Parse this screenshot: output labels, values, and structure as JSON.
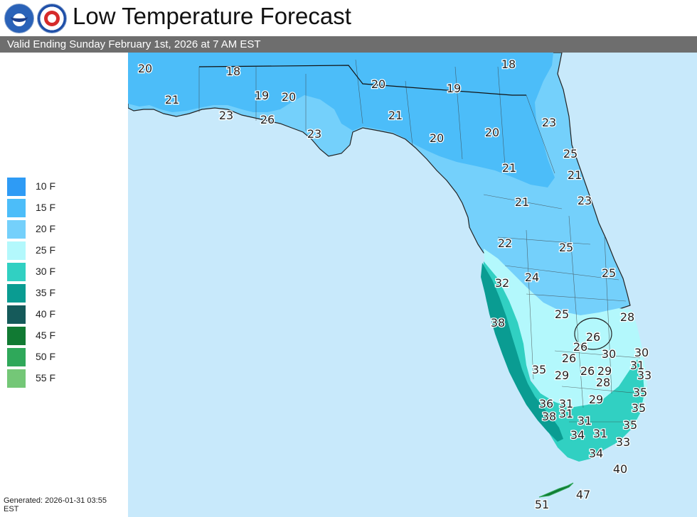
{
  "header": {
    "title": "Low Temperature Forecast",
    "valid_text": "Valid Ending Sunday February 1st, 2026 at 7 AM EST"
  },
  "logos": [
    "noaa-logo",
    "nws-logo"
  ],
  "legend": {
    "items": [
      {
        "label": "10 F",
        "color": "#2e9bf5"
      },
      {
        "label": "15 F",
        "color": "#4cbdf9"
      },
      {
        "label": "20 F",
        "color": "#74d0fb"
      },
      {
        "label": "25 F",
        "color": "#b3f8fc"
      },
      {
        "label": "30 F",
        "color": "#31d0c2"
      },
      {
        "label": "35 F",
        "color": "#0a9c92"
      },
      {
        "label": "40 F",
        "color": "#155a5a"
      },
      {
        "label": "45 F",
        "color": "#117a33"
      },
      {
        "label": "50 F",
        "color": "#2fa85a"
      },
      {
        "label": "55 F",
        "color": "#74c777"
      }
    ]
  },
  "footer": {
    "generated_line1": "Generated: 2026-01-31 03:55",
    "generated_line2": "EST"
  },
  "map": {
    "water_color": "#c8e9fb",
    "temperature_labels": [
      "20",
      "18",
      "18",
      "21",
      "19",
      "20",
      "20",
      "19",
      "23",
      "26",
      "21",
      "23",
      "20",
      "20",
      "23",
      "25",
      "21",
      "21",
      "21",
      "23",
      "22",
      "25",
      "24",
      "25",
      "32",
      "25",
      "38",
      "28",
      "26",
      "26",
      "30",
      "30",
      "26",
      "35",
      "29",
      "26",
      "29",
      "31",
      "33",
      "28",
      "36",
      "31",
      "29",
      "35",
      "38",
      "31",
      "31",
      "35",
      "34",
      "31",
      "35",
      "33",
      "34",
      "40",
      "47",
      "51"
    ]
  }
}
